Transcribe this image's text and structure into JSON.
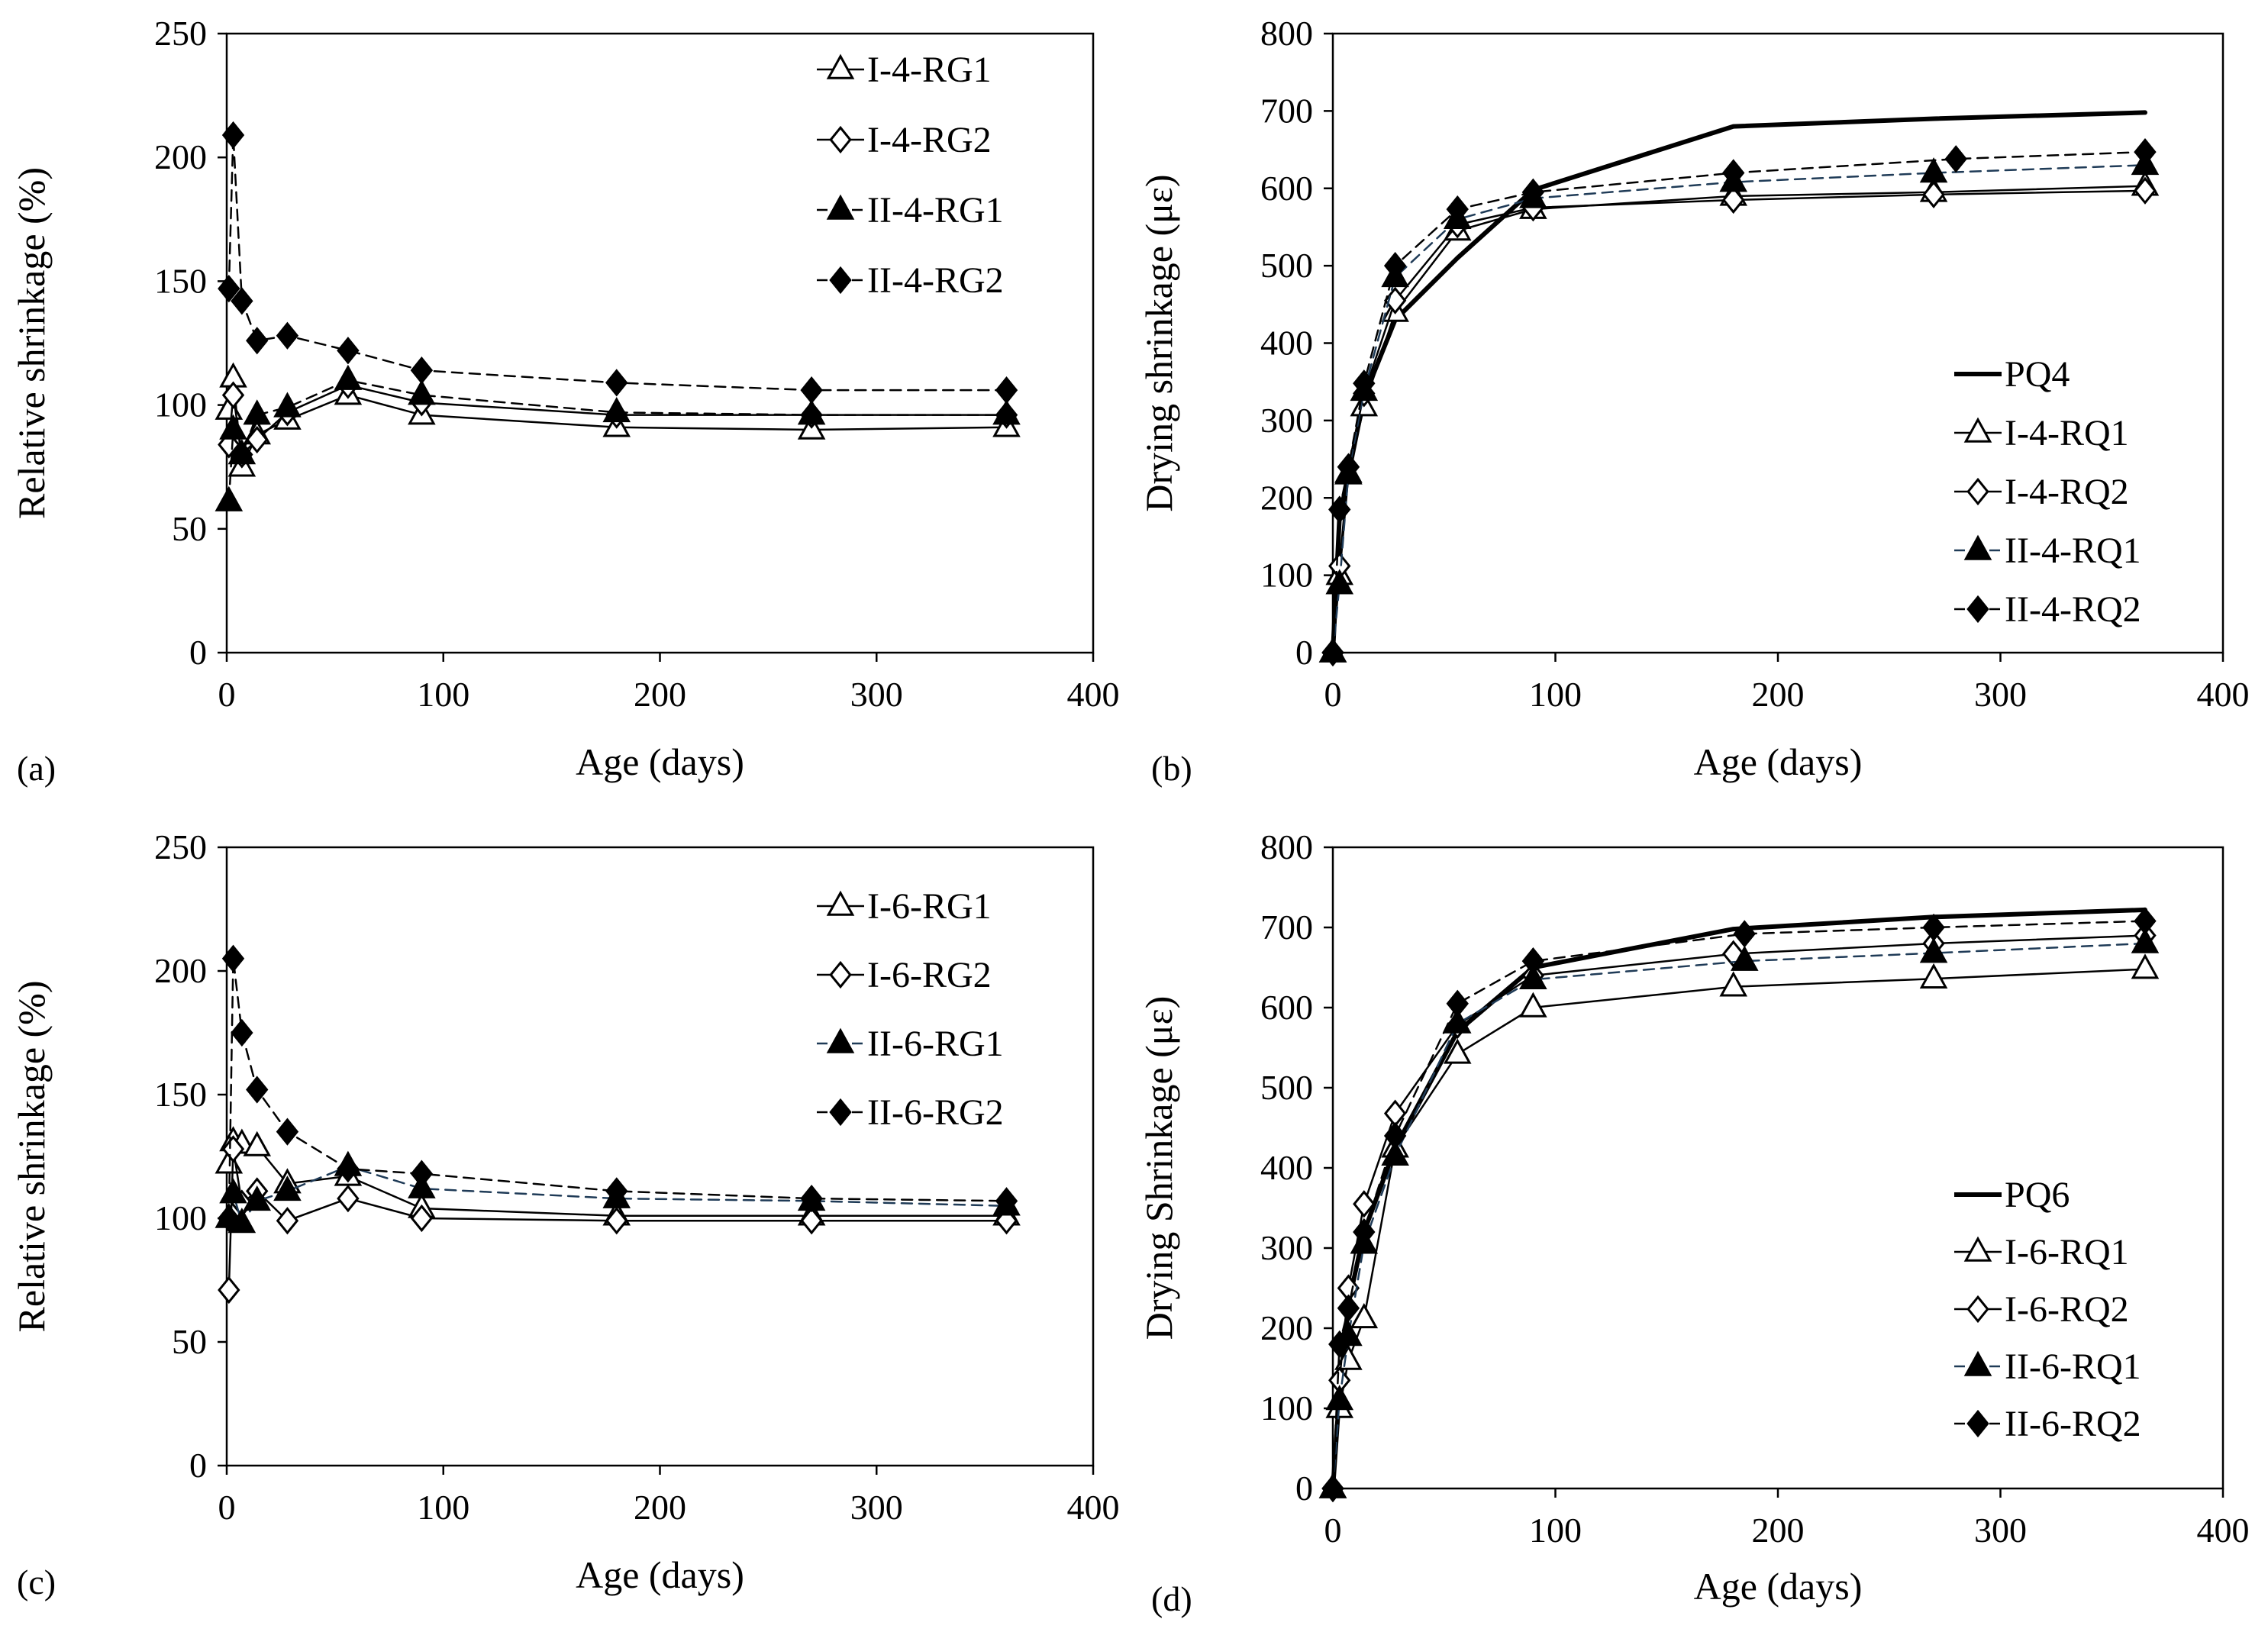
{
  "figure": {
    "panels": [
      "a",
      "b",
      "c",
      "d"
    ]
  },
  "chart_data": [
    {
      "panel_label": "(a)",
      "type": "line",
      "xlabel": "Age (days)",
      "ylabel": "Relative shrinkage (%)",
      "xlim": [
        0,
        400
      ],
      "ylim": [
        0,
        250
      ],
      "xticks": [
        0,
        100,
        200,
        300,
        400
      ],
      "yticks": [
        0,
        50,
        100,
        150,
        200,
        250
      ],
      "grid": false,
      "legend_position": "top-right",
      "series": [
        {
          "name": "I-4-RG1",
          "marker": "open-triangle",
          "line": "solid",
          "width": 2.5,
          "color": "#000000",
          "x": [
            1,
            3,
            7,
            14,
            28,
            56,
            90,
            180,
            270,
            360
          ],
          "y": [
            98,
            111,
            75,
            88,
            94,
            104,
            96,
            91,
            90,
            91
          ]
        },
        {
          "name": "I-4-RG2",
          "marker": "open-diamond",
          "line": "solid",
          "width": 2.5,
          "color": "#000000",
          "x": [
            1,
            3,
            7,
            14,
            28,
            56,
            90,
            180,
            270,
            360
          ],
          "y": [
            84,
            104,
            80,
            86,
            97,
            108,
            101,
            96,
            96,
            96
          ]
        },
        {
          "name": "II-4-RG1",
          "marker": "filled-triangle",
          "line": "dashed",
          "width": 2.5,
          "color": "#000000",
          "x": [
            1,
            3,
            7,
            14,
            28,
            56,
            90,
            180,
            270,
            360
          ],
          "y": [
            61,
            90,
            80,
            96,
            99,
            110,
            104,
            97,
            96,
            96
          ]
        },
        {
          "name": "II-4-RG2",
          "marker": "filled-diamond",
          "line": "dashed",
          "width": 2.5,
          "color": "#000000",
          "x": [
            1,
            3,
            7,
            14,
            28,
            56,
            90,
            180,
            270,
            360
          ],
          "y": [
            147,
            209,
            142,
            126,
            128,
            122,
            114,
            109,
            106,
            106
          ]
        }
      ]
    },
    {
      "panel_label": "(b)",
      "type": "line",
      "xlabel": "Age (days)",
      "ylabel": "Drying shrinkage (με)",
      "xlim": [
        0,
        400
      ],
      "ylim": [
        0,
        800
      ],
      "xticks": [
        0,
        100,
        200,
        300,
        400
      ],
      "yticks": [
        0,
        100,
        200,
        300,
        400,
        500,
        600,
        700,
        800
      ],
      "grid": false,
      "legend_position": "bottom-right",
      "series": [
        {
          "name": "PQ4",
          "marker": "none",
          "line": "solid",
          "width": 6,
          "color": "#000000",
          "x": [
            0,
            3,
            7,
            14,
            28,
            56,
            90,
            180,
            270,
            365
          ],
          "y": [
            0,
            175,
            230,
            330,
            430,
            510,
            598,
            680,
            690,
            698
          ]
        },
        {
          "name": "I-4-RQ1",
          "marker": "open-triangle",
          "line": "solid",
          "width": 2.5,
          "color": "#000000",
          "x": [
            0,
            3,
            7,
            14,
            28,
            56,
            90,
            180,
            270,
            365
          ],
          "y": [
            0,
            100,
            230,
            318,
            440,
            545,
            573,
            590,
            595,
            603
          ]
        },
        {
          "name": "I-4-RQ2",
          "marker": "open-diamond",
          "line": "solid",
          "width": 2.5,
          "color": "#000000",
          "x": [
            0,
            3,
            7,
            14,
            28,
            56,
            90,
            180,
            270,
            365
          ],
          "y": [
            0,
            112,
            240,
            335,
            455,
            553,
            575,
            585,
            592,
            597
          ]
        },
        {
          "name": "II-4-RQ1",
          "marker": "filled-triangle",
          "line": "dashed",
          "width": 2.5,
          "color": "#1f3b57",
          "x": [
            0,
            3,
            7,
            14,
            28,
            56,
            90,
            180,
            270,
            365
          ],
          "y": [
            0,
            88,
            232,
            338,
            485,
            560,
            587,
            608,
            620,
            630
          ]
        },
        {
          "name": "II-4-RQ2",
          "marker": "filled-diamond",
          "line": "dashed",
          "width": 2.5,
          "color": "#000000",
          "x": [
            0,
            3,
            7,
            14,
            28,
            56,
            90,
            180,
            280,
            365
          ],
          "y": [
            0,
            185,
            240,
            348,
            500,
            573,
            595,
            620,
            638,
            647
          ]
        }
      ]
    },
    {
      "panel_label": "(c)",
      "type": "line",
      "xlabel": "Age (days)",
      "ylabel": "Relative shrinkage (%)",
      "xlim": [
        0,
        400
      ],
      "ylim": [
        0,
        250
      ],
      "xticks": [
        0,
        100,
        200,
        300,
        400
      ],
      "yticks": [
        0,
        50,
        100,
        150,
        200,
        250
      ],
      "grid": false,
      "legend_position": "top-right",
      "series": [
        {
          "name": "I-6-RG1",
          "marker": "open-triangle",
          "line": "solid",
          "width": 2.5,
          "color": "#000000",
          "x": [
            1,
            3,
            7,
            14,
            28,
            56,
            90,
            180,
            270,
            360
          ],
          "y": [
            122,
            131,
            130,
            129,
            114,
            117,
            104,
            101,
            101,
            101
          ]
        },
        {
          "name": "I-6-RG2",
          "marker": "open-diamond",
          "line": "solid",
          "width": 2.5,
          "color": "#000000",
          "x": [
            1,
            3,
            7,
            14,
            28,
            56,
            90,
            180,
            270,
            360
          ],
          "y": [
            71,
            128,
            106,
            111,
            99,
            108,
            100,
            99,
            99,
            99
          ]
        },
        {
          "name": "II-6-RG1",
          "marker": "filled-triangle",
          "line": "dashed",
          "width": 2.5,
          "color": "#1f3b57",
          "x": [
            1,
            3,
            7,
            14,
            28,
            56,
            90,
            180,
            270,
            360
          ],
          "y": [
            100,
            110,
            98,
            107,
            111,
            121,
            112,
            108,
            107,
            105
          ]
        },
        {
          "name": "II-6-RG2",
          "marker": "filled-diamond",
          "line": "dashed",
          "width": 2.5,
          "color": "#000000",
          "x": [
            1,
            3,
            7,
            14,
            28,
            56,
            90,
            180,
            270,
            360
          ],
          "y": [
            100,
            205,
            175,
            152,
            135,
            120,
            118,
            111,
            108,
            107
          ]
        }
      ]
    },
    {
      "panel_label": "(d)",
      "type": "line",
      "xlabel": "Age (days)",
      "ylabel": "Drying Shrinkage (με)",
      "xlim": [
        0,
        400
      ],
      "ylim": [
        0,
        800
      ],
      "xticks": [
        0,
        100,
        200,
        300,
        400
      ],
      "yticks": [
        0,
        100,
        200,
        300,
        400,
        500,
        600,
        700,
        800
      ],
      "grid": false,
      "legend_position": "bottom-right",
      "series": [
        {
          "name": "PQ6",
          "marker": "none",
          "line": "solid",
          "width": 6,
          "color": "#000000",
          "x": [
            0,
            3,
            7,
            14,
            28,
            56,
            90,
            180,
            270,
            365
          ],
          "y": [
            0,
            120,
            230,
            320,
            425,
            570,
            650,
            698,
            713,
            722
          ]
        },
        {
          "name": "I-6-RQ1",
          "marker": "open-triangle",
          "line": "solid",
          "width": 2.5,
          "color": "#000000",
          "x": [
            0,
            3,
            7,
            14,
            28,
            56,
            90,
            180,
            270,
            365
          ],
          "y": [
            0,
            100,
            160,
            212,
            425,
            542,
            600,
            626,
            636,
            648
          ]
        },
        {
          "name": "I-6-RQ2",
          "marker": "open-diamond",
          "line": "solid",
          "width": 2.5,
          "color": "#000000",
          "x": [
            0,
            3,
            7,
            14,
            28,
            56,
            90,
            180,
            270,
            365
          ],
          "y": [
            0,
            135,
            250,
            355,
            468,
            578,
            640,
            667,
            680,
            690
          ]
        },
        {
          "name": "II-6-RQ1",
          "marker": "filled-triangle",
          "line": "dashed",
          "width": 2.5,
          "color": "#1f3b57",
          "x": [
            0,
            3,
            7,
            14,
            28,
            56,
            90,
            185,
            270,
            365
          ],
          "y": [
            0,
            110,
            190,
            305,
            415,
            580,
            635,
            658,
            668,
            680
          ]
        },
        {
          "name": "II-6-RQ2",
          "marker": "filled-diamond",
          "line": "dashed",
          "width": 2.5,
          "color": "#000000",
          "x": [
            0,
            3,
            7,
            14,
            28,
            56,
            90,
            185,
            270,
            365
          ],
          "y": [
            0,
            180,
            225,
            320,
            440,
            605,
            658,
            692,
            700,
            708
          ]
        }
      ]
    }
  ]
}
